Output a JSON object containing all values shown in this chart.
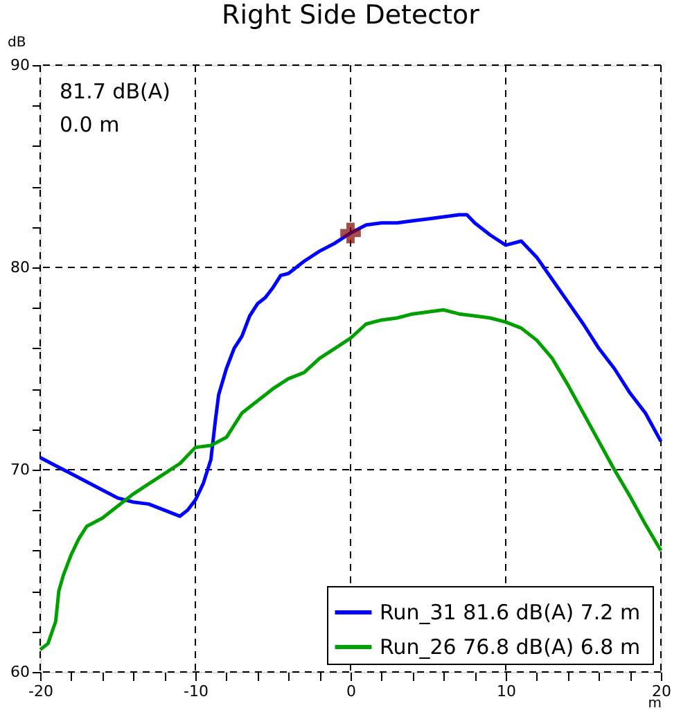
{
  "chart_data": {
    "type": "line",
    "title": "Right Side Detector",
    "xlabel": "m",
    "ylabel": "dB",
    "xlim": [
      -20,
      20
    ],
    "ylim": [
      60,
      90
    ],
    "xticks": [
      -20,
      {
        "value": -18,
        "label": null
      },
      {
        "value": -16,
        "label": null
      },
      {
        "value": -14,
        "label": null
      },
      {
        "value": -12,
        "label": null
      },
      -10,
      {
        "value": -8,
        "label": null
      },
      {
        "value": -6,
        "label": null
      },
      {
        "value": -4,
        "label": null
      },
      {
        "value": -2,
        "label": null
      },
      0,
      {
        "value": 2,
        "label": null
      },
      {
        "value": 4,
        "label": null
      },
      {
        "value": 6,
        "label": null
      },
      {
        "value": 8,
        "label": null
      },
      10,
      {
        "value": 12,
        "label": null
      },
      {
        "value": 14,
        "label": null
      },
      {
        "value": 16,
        "label": null
      },
      {
        "value": 18,
        "label": null
      },
      20
    ],
    "yticks": [
      60,
      {
        "value": 62,
        "label": null
      },
      {
        "value": 64,
        "label": null
      },
      {
        "value": 66,
        "label": null
      },
      {
        "value": 68,
        "label": null
      },
      70,
      {
        "value": 72,
        "label": null
      },
      {
        "value": 74,
        "label": null
      },
      {
        "value": 76,
        "label": null
      },
      {
        "value": 78,
        "label": null
      },
      80,
      {
        "value": 82,
        "label": null
      },
      {
        "value": 84,
        "label": null
      },
      {
        "value": 86,
        "label": null
      },
      {
        "value": 88,
        "label": null
      },
      90
    ],
    "grid": true,
    "legend": "bottom right",
    "line_style": "dashed",
    "annotations": [
      "81.7 dB(A)",
      "0.0 m"
    ],
    "series": [
      {
        "name": "Run_31  81.6 dB(A) 7.2 m",
        "color": "#0000ff",
        "x": [
          -20,
          -19,
          -18,
          -17,
          -16,
          -15,
          -14,
          -13,
          -12,
          -11,
          -10.5,
          -10,
          -9.5,
          -9,
          -8.7,
          -8.5,
          -8,
          -7.5,
          -7,
          -6.5,
          -6,
          -5.5,
          -5,
          -4.5,
          -4,
          -3,
          -2,
          -1,
          0,
          1,
          2,
          3,
          4,
          5,
          6,
          7,
          7.5,
          8,
          9,
          10,
          11,
          12,
          13,
          14,
          15,
          16,
          17,
          18,
          19,
          20
        ],
        "values": [
          70.6,
          70.2,
          69.8,
          69.4,
          69.0,
          68.6,
          68.4,
          68.3,
          68.0,
          67.7,
          68.0,
          68.5,
          69.3,
          70.5,
          72.5,
          73.7,
          75.0,
          76.0,
          76.6,
          77.6,
          78.2,
          78.5,
          79.0,
          79.6,
          79.7,
          80.3,
          80.8,
          81.2,
          81.7,
          82.1,
          82.2,
          82.2,
          82.3,
          82.4,
          82.5,
          82.6,
          82.6,
          82.2,
          81.6,
          81.1,
          81.3,
          80.5,
          79.4,
          78.3,
          77.2,
          76.0,
          75.0,
          73.8,
          72.8,
          71.4
        ],
        "line_style": "solid"
      },
      {
        "name": "Run_26  76.8 dB(A) 6.8 m",
        "color": "#00a000",
        "x": [
          -20,
          -19.5,
          -19,
          -18.8,
          -18.5,
          -18,
          -17.5,
          -17,
          -16,
          -15,
          -14,
          -13,
          -12,
          -11,
          -10,
          -9,
          -8,
          -7,
          -6,
          -5,
          -4,
          -3,
          -2,
          -1,
          0,
          1,
          2,
          3,
          4,
          5,
          6,
          7,
          8,
          9,
          10,
          11,
          12,
          13,
          14,
          15,
          16,
          17,
          18,
          19,
          20
        ],
        "values": [
          61.1,
          61.4,
          62.5,
          64.0,
          64.8,
          65.8,
          66.6,
          67.2,
          67.6,
          68.2,
          68.8,
          69.3,
          69.8,
          70.3,
          71.1,
          71.2,
          71.6,
          72.8,
          73.4,
          74.0,
          74.5,
          74.8,
          75.5,
          76.0,
          76.5,
          77.2,
          77.4,
          77.5,
          77.7,
          77.8,
          77.9,
          77.7,
          77.6,
          77.5,
          77.3,
          77.0,
          76.4,
          75.5,
          74.2,
          72.8,
          71.4,
          70.0,
          68.7,
          67.3,
          66.0
        ],
        "line_style": "solid"
      },
      {
        "type": "scatter",
        "marker": "cross",
        "color": "#800000",
        "x": [
          0
        ],
        "values": [
          81.7
        ]
      }
    ]
  }
}
